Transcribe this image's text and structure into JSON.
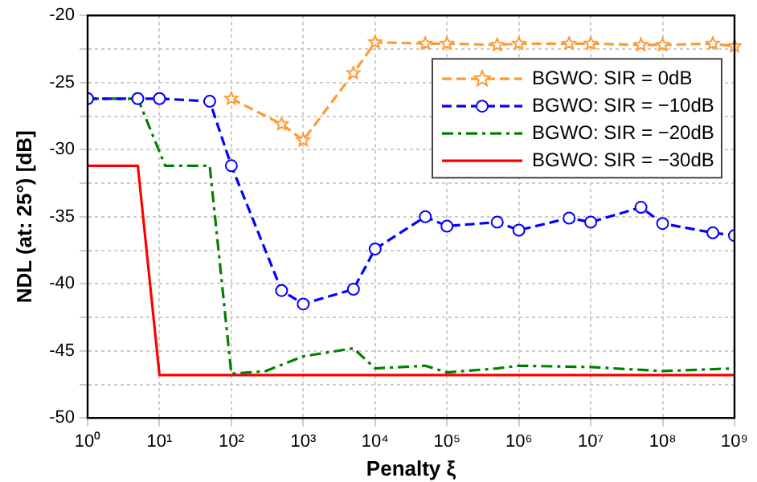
{
  "chart_data": {
    "type": "line",
    "xlabel": "Penalty ξ",
    "ylabel": "NDL (at: 25°) [dB]",
    "log": "x",
    "xlim": [
      1,
      1000000000
    ],
    "xticks": [
      {
        "value": 1,
        "label": "10⁰"
      },
      {
        "value": 10,
        "label": "10¹"
      },
      {
        "value": 100,
        "label": "10²"
      },
      {
        "value": 1000,
        "label": "10³"
      },
      {
        "value": 10000,
        "label": "10⁴"
      },
      {
        "value": 100000,
        "label": "10⁵"
      },
      {
        "value": 1000000,
        "label": "10⁶"
      },
      {
        "value": 10000000,
        "label": "10⁷"
      },
      {
        "value": 100000000,
        "label": "10⁸"
      },
      {
        "value": 1000000000,
        "label": "10⁹"
      }
    ],
    "ylim": [
      -50,
      -20
    ],
    "yticks": [
      -50,
      {
        "value": -47.5,
        "label": null
      },
      -45,
      {
        "value": -42.5,
        "label": null
      },
      -40,
      {
        "value": -37.5,
        "label": null
      },
      -35,
      {
        "value": -32.5,
        "label": null
      },
      -30,
      {
        "value": -27.5,
        "label": null
      },
      -25,
      {
        "value": -22.5,
        "label": null
      },
      -20
    ],
    "grid": true,
    "legend": "top right",
    "series": [
      {
        "name": "BGWO: SIR = 0dB",
        "color": "#ff9933",
        "marker": "star",
        "line_style": "dashed",
        "x": [
          100,
          500,
          1000,
          5000,
          10000,
          50000,
          100000,
          500000,
          1000000,
          5000000,
          10000000,
          50000000,
          100000000,
          500000000,
          1000000000
        ],
        "values": [
          -26.2,
          -28.1,
          -29.3,
          -24.3,
          -22,
          -22.1,
          -22.1,
          -22.2,
          -22.1,
          -22.1,
          -22.1,
          -22.2,
          -22.2,
          -22.1,
          -22.3
        ]
      },
      {
        "name": "BGWO: SIR = −10dB",
        "color": "#0000ff",
        "marker": "circle",
        "line_style": "dashed",
        "x": [
          1,
          5,
          10,
          50,
          100,
          500,
          1000,
          5000,
          10000,
          50000,
          100000,
          500000,
          1000000,
          5000000,
          10000000,
          50000000,
          100000000,
          500000000,
          1000000000
        ],
        "values": [
          -26.2,
          -26.2,
          -26.2,
          -26.4,
          -31.2,
          -40.5,
          -41.5,
          -40.4,
          -37.4,
          -35,
          -35.7,
          -35.4,
          -36,
          -35.1,
          -35.4,
          -34.3,
          -35.5,
          -36.2,
          -36.4
        ]
      },
      {
        "name": "BGWO: SIR = −20dB",
        "color": "#008000",
        "marker": "none",
        "line_style": "dashdot",
        "x": [
          1,
          5,
          12,
          50,
          100,
          300,
          1000,
          5000,
          10000,
          50000,
          100000,
          500000,
          1000000,
          10000000,
          100000000,
          1000000000
        ],
        "values": [
          -26.2,
          -26.2,
          -31.2,
          -31.2,
          -46.7,
          -46.5,
          -45.4,
          -44.8,
          -46.3,
          -46.1,
          -46.6,
          -46.3,
          -46.1,
          -46.2,
          -46.5,
          -46.3
        ]
      },
      {
        "name": "BGWO: SIR = −30dB",
        "color": "#ff0000",
        "marker": "none",
        "line_style": "solid",
        "x": [
          1,
          5,
          10,
          1000000000
        ],
        "values": [
          -31.2,
          -31.2,
          -46.8,
          -46.8
        ]
      }
    ]
  }
}
